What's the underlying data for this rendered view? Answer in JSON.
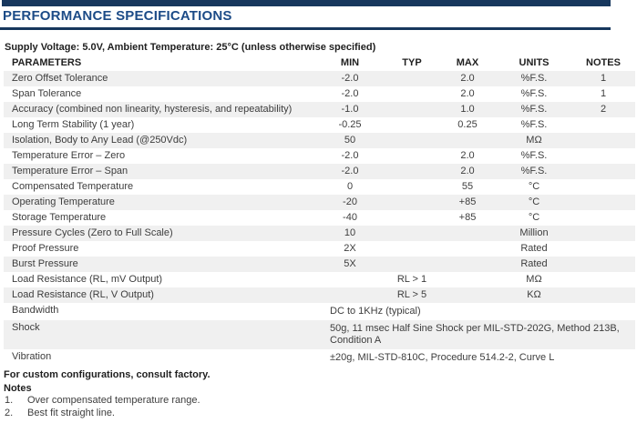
{
  "title": "PERFORMANCE SPECIFICATIONS",
  "subtitle": "Supply Voltage: 5.0V, Ambient Temperature: 25°C (unless otherwise specified)",
  "colors": {
    "navy_bar": "#17375D",
    "title_blue": "#1C4B87",
    "row_shade": "#F0F0F0",
    "body_text": "#3D3D3D"
  },
  "table": {
    "headers": [
      "PARAMETERS",
      "MIN",
      "TYP",
      "MAX",
      "UNITS",
      "NOTES"
    ],
    "rows": [
      {
        "param": "Zero Offset Tolerance",
        "min": "-2.0",
        "typ": "",
        "max": "2.0",
        "units": "%F.S.",
        "notes": "1"
      },
      {
        "param": "Span Tolerance",
        "min": "-2.0",
        "typ": "",
        "max": "2.0",
        "units": "%F.S.",
        "notes": "1"
      },
      {
        "param": "Accuracy (combined non linearity, hysteresis, and repeatability)",
        "min": "-1.0",
        "typ": "",
        "max": "1.0",
        "units": "%F.S.",
        "notes": "2"
      },
      {
        "param": "Long Term Stability (1 year)",
        "min": "-0.25",
        "typ": "",
        "max": "0.25",
        "units": "%F.S.",
        "notes": ""
      },
      {
        "param": "Isolation, Body to Any Lead (@250Vdc)",
        "min": "50",
        "typ": "",
        "max": "",
        "units": "MΩ",
        "notes": ""
      },
      {
        "param": "Temperature Error – Zero",
        "min": "-2.0",
        "typ": "",
        "max": "2.0",
        "units": "%F.S.",
        "notes": ""
      },
      {
        "param": "Temperature Error – Span",
        "min": "-2.0",
        "typ": "",
        "max": "2.0",
        "units": "%F.S.",
        "notes": ""
      },
      {
        "param": "Compensated Temperature",
        "min": "0",
        "typ": "",
        "max": "55",
        "units": "°C",
        "notes": ""
      },
      {
        "param": "Operating Temperature",
        "min": "-20",
        "typ": "",
        "max": "+85",
        "units": "°C",
        "notes": ""
      },
      {
        "param": "Storage Temperature",
        "min": "-40",
        "typ": "",
        "max": "+85",
        "units": "°C",
        "notes": ""
      },
      {
        "param": "Pressure Cycles (Zero to Full Scale)",
        "min": "10",
        "typ": "",
        "max": "",
        "units": "Million",
        "notes": ""
      },
      {
        "param": "Proof Pressure",
        "min": "2X",
        "typ": "",
        "max": "",
        "units": "Rated",
        "notes": ""
      },
      {
        "param": "Burst Pressure",
        "min": "5X",
        "typ": "",
        "max": "",
        "units": "Rated",
        "notes": ""
      },
      {
        "param": "Load Resistance (RL, mV Output)",
        "min": "",
        "typ": "RL > 1",
        "max": "",
        "units": "MΩ",
        "notes": ""
      },
      {
        "param": "Load Resistance (RL, V Output)",
        "min": "",
        "typ": "RL > 5",
        "max": "",
        "units": "KΩ",
        "notes": ""
      },
      {
        "param": "Bandwidth",
        "span": "DC to 1KHz (typical)"
      },
      {
        "param": "Shock",
        "span": "50g, 11 msec Half Sine Shock per MIL-STD-202G, Method 213B, Condition A"
      },
      {
        "param": "Vibration",
        "span": "±20g, MIL-STD-810C, Procedure 514.2-2, Curve L"
      }
    ]
  },
  "footer": {
    "custom_note": "For custom configurations, consult factory.",
    "notes_title": "Notes",
    "notes": [
      {
        "num": "1.",
        "text": "Over compensated temperature range."
      },
      {
        "num": "2.",
        "text": "Best fit straight line."
      }
    ]
  }
}
